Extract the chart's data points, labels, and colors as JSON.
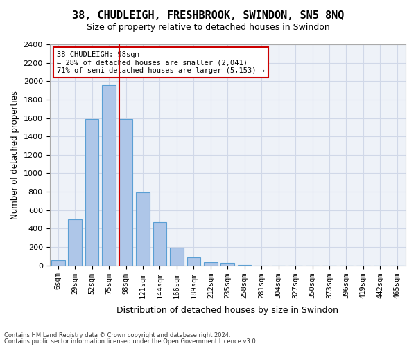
{
  "title1": "38, CHUDLEIGH, FRESHBROOK, SWINDON, SN5 8NQ",
  "title2": "Size of property relative to detached houses in Swindon",
  "xlabel": "Distribution of detached houses by size in Swindon",
  "ylabel": "Number of detached properties",
  "footer1": "Contains HM Land Registry data © Crown copyright and database right 2024.",
  "footer2": "Contains public sector information licensed under the Open Government Licence v3.0.",
  "annotation_line1": "38 CHUDLEIGH: 98sqm",
  "annotation_line2": "← 28% of detached houses are smaller (2,041)",
  "annotation_line3": "71% of semi-detached houses are larger (5,153) →",
  "property_idx": 4,
  "bar_categories": [
    "6sqm",
    "29sqm",
    "52sqm",
    "75sqm",
    "98sqm",
    "121sqm",
    "144sqm",
    "166sqm",
    "189sqm",
    "212sqm",
    "235sqm",
    "258sqm",
    "281sqm",
    "304sqm",
    "327sqm",
    "350sqm",
    "373sqm",
    "396sqm",
    "419sqm",
    "442sqm",
    "465sqm"
  ],
  "bar_values": [
    55,
    500,
    1590,
    1960,
    1590,
    790,
    470,
    195,
    90,
    35,
    25,
    5,
    0,
    0,
    0,
    0,
    0,
    0,
    0,
    0,
    0
  ],
  "bar_color": "#aec6e8",
  "bar_edge_color": "#5a9fd4",
  "marker_color": "#cc0000",
  "grid_color": "#d0d8e8",
  "background_color": "#eef2f8",
  "ylim": [
    0,
    2400
  ],
  "yticks": [
    0,
    200,
    400,
    600,
    800,
    1000,
    1200,
    1400,
    1600,
    1800,
    2000,
    2200,
    2400
  ]
}
